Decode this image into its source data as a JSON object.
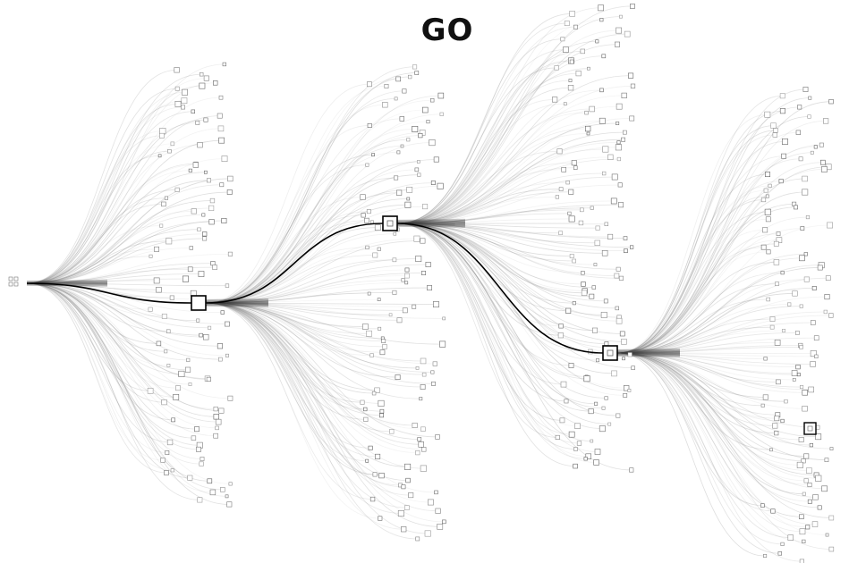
{
  "title": "GO",
  "colors": {
    "background": "#ffffff",
    "branch": "#8a8a8a",
    "highlight_path": "#000000",
    "node_stroke": "#555555",
    "selected_node_stroke": "#000000"
  },
  "structure": {
    "levels": 5,
    "selected_nodes": 4,
    "emphasized_leaf": 1
  }
}
